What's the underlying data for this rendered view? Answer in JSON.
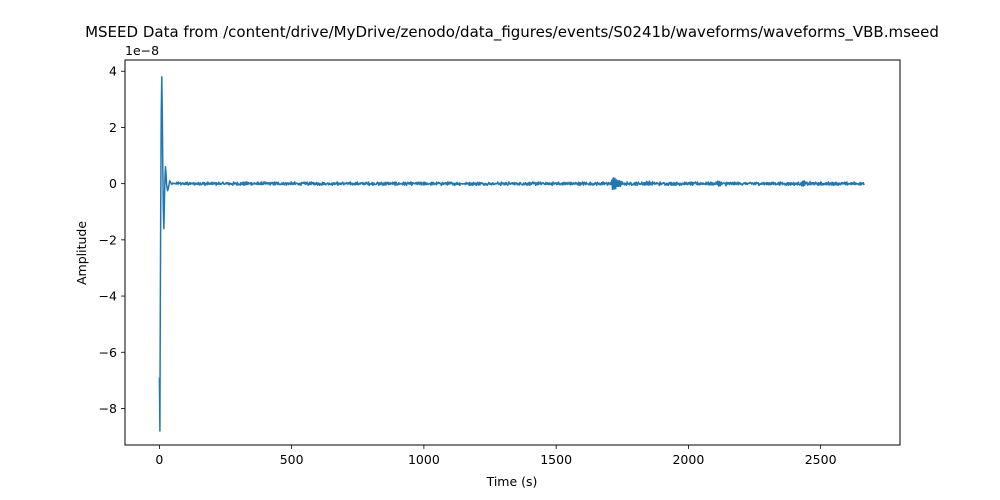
{
  "chart_data": {
    "type": "line",
    "title": "MSEED Data from /content/drive/MyDrive/zenodo/data_figures/events/S0241b/waveforms/waveforms_VBB.mseed",
    "xlabel": "Time (s)",
    "ylabel": "Amplitude",
    "offset_text": "1e−8",
    "xlim": [
      -130,
      2800
    ],
    "ylim": [
      -9.3,
      4.4
    ],
    "xticks": [
      0,
      500,
      1000,
      1500,
      2000,
      2500
    ],
    "yticks": [
      -8,
      -6,
      -4,
      -2,
      0,
      2,
      4
    ],
    "ytick_labels": [
      "−8",
      "−6",
      "−4",
      "−2",
      "0",
      "2",
      "4"
    ],
    "grid": false,
    "line_color": "#1f77b4",
    "series": [
      {
        "x": [
          0,
          2,
          3,
          5,
          7,
          9,
          11,
          13,
          15,
          17,
          19,
          21,
          23,
          25,
          27,
          29,
          31,
          33,
          35,
          37,
          39,
          41,
          43,
          45,
          47,
          49,
          51,
          53,
          55,
          60
        ],
        "values": [
          -6.9,
          -8.8,
          -5.5,
          -1.0,
          2.5,
          3.8,
          2.5,
          0.5,
          -1.0,
          -1.6,
          -0.7,
          0.2,
          0.6,
          0.4,
          0.0,
          -0.15,
          -0.25,
          -0.2,
          -0.1,
          0.0,
          0.1,
          0.08,
          0.04,
          0.0,
          -0.03,
          0.0,
          0.02,
          0.0,
          0.01,
          0.0
        ]
      }
    ],
    "events": [
      {
        "t": 1715,
        "amplitude": 0.3
      },
      {
        "t": 1840,
        "amplitude": 0.08
      },
      {
        "t": 2110,
        "amplitude": 0.07
      },
      {
        "t": 2430,
        "amplitude": 0.1
      }
    ],
    "x_end": 2665
  }
}
